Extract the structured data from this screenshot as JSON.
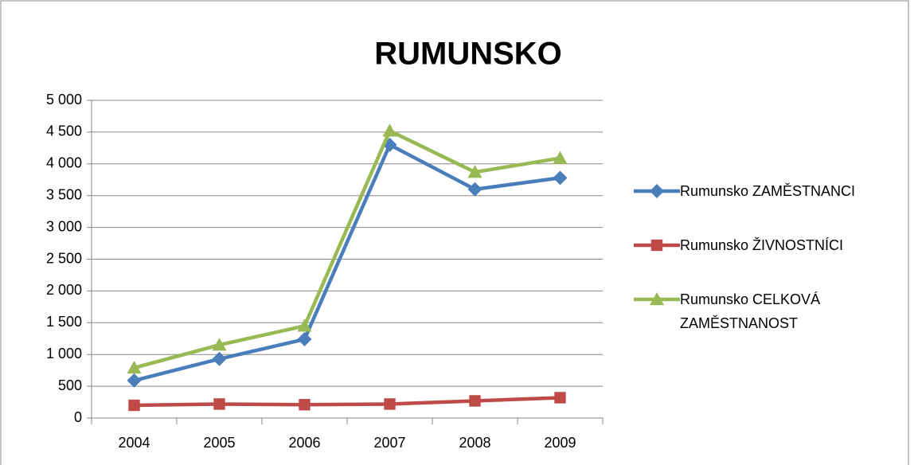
{
  "chart_data": {
    "type": "line",
    "title": "RUMUNSKO",
    "categories": [
      "2004",
      "2005",
      "2006",
      "2007",
      "2008",
      "2009"
    ],
    "series": [
      {
        "name": "Rumunsko ZAMĚSTNANCI",
        "color": "#4a7ebb",
        "marker": "diamond",
        "values": [
          590,
          930,
          1240,
          4300,
          3600,
          3780
        ]
      },
      {
        "name": "Rumunsko ŽIVNOSTNÍCI",
        "color": "#be4b48",
        "marker": "square",
        "values": [
          200,
          220,
          210,
          220,
          270,
          320
        ]
      },
      {
        "name": "Rumunsko CELKOVÁ ZAMĚSTNANOST",
        "color": "#98b954",
        "marker": "triangle",
        "values": [
          790,
          1150,
          1450,
          4520,
          3870,
          4090
        ]
      }
    ],
    "ylim": [
      0,
      5000
    ],
    "yticks": [
      0,
      500,
      {
        "value": 1000,
        "label": "1 000"
      },
      {
        "value": 1500,
        "label": "1 500"
      },
      {
        "value": 2000,
        "label": "2 000"
      },
      {
        "value": 2500,
        "label": "2 500"
      },
      {
        "value": 3000,
        "label": "3 000"
      },
      {
        "value": 3500,
        "label": "3 500"
      },
      {
        "value": 4000,
        "label": "4 000"
      },
      {
        "value": 4500,
        "label": "4 500"
      },
      {
        "value": 5000,
        "label": "5 000"
      }
    ],
    "grid": true,
    "legend": "right"
  }
}
